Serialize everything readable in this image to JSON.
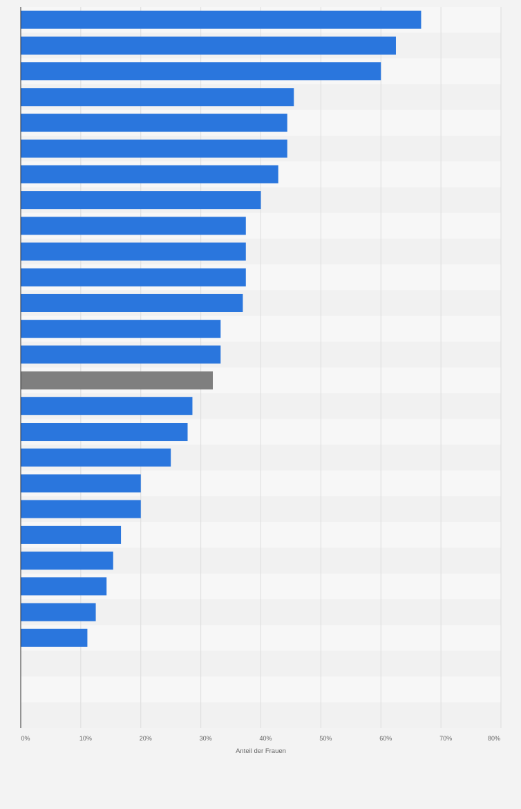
{
  "chart_data": {
    "type": "bar",
    "orientation": "horizontal",
    "xlabel": "Anteil der Frauen",
    "ylabel": "",
    "xlim": [
      0,
      80
    ],
    "x_ticks": [
      0,
      10,
      20,
      30,
      40,
      50,
      60,
      70,
      80
    ],
    "x_tick_labels": [
      "0%",
      "10%",
      "20%",
      "30%",
      "40%",
      "50%",
      "60%",
      "70%",
      "80%"
    ],
    "grid": true,
    "categories": [
      "",
      "",
      "",
      "",
      "",
      "",
      "",
      "",
      "",
      "",
      "",
      "",
      "",
      "",
      "",
      "",
      "",
      "",
      "",
      "",
      "",
      "",
      "",
      "",
      "",
      "",
      "",
      ""
    ],
    "values": [
      66.7,
      62.5,
      60.0,
      45.5,
      44.4,
      44.4,
      42.9,
      40.0,
      37.5,
      37.5,
      37.5,
      37.0,
      33.3,
      33.3,
      32.0,
      28.6,
      27.8,
      25.0,
      20.0,
      20.0,
      16.7,
      15.4,
      14.3,
      12.5,
      11.1,
      null,
      null,
      null
    ],
    "highlight_index": 14
  },
  "colors": {
    "bar": "#2a76dd",
    "highlight": "#7f7f7f",
    "band_light": "#f7f7f7",
    "band_dark": "#f1f1f1",
    "grid": "#dcdcdc",
    "axis": "#333333",
    "background": "#f3f3f3"
  }
}
